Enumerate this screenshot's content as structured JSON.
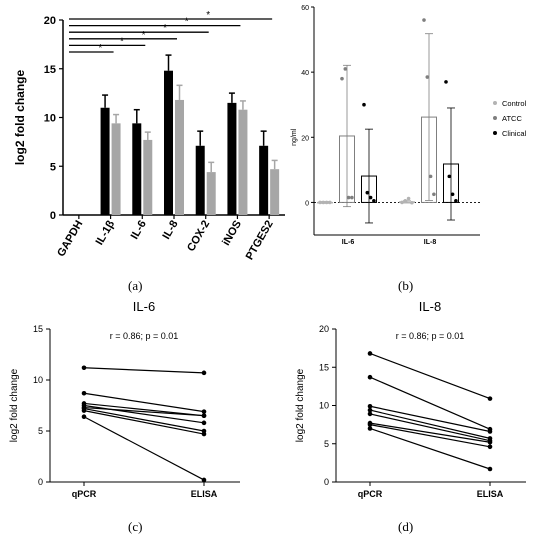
{
  "captions": {
    "a": "(a)",
    "b": "(b)",
    "c": "(c)",
    "d": "(d)"
  },
  "chart_data": [
    {
      "type": "bar",
      "ylabel": "log2 fold change",
      "ylim": [
        0,
        20
      ],
      "yticks": [
        0,
        5,
        10,
        15,
        20
      ],
      "categories": [
        "GAPDH",
        "IL-1β",
        "IL-6",
        "IL-8",
        "COX-2",
        "iNOS",
        "PTGES2"
      ],
      "series": [
        {
          "color": "#000000",
          "values": [
            0,
            11.0,
            9.4,
            14.8,
            7.1,
            11.5,
            7.1
          ],
          "errors": [
            0,
            1.3,
            1.4,
            1.6,
            1.5,
            1.0,
            1.5
          ]
        },
        {
          "color": "#a6a6a6",
          "values": [
            0,
            9.4,
            7.7,
            11.8,
            4.4,
            10.8,
            4.7
          ],
          "errors": [
            0,
            0.9,
            0.8,
            1.5,
            1.0,
            0.9,
            0.9
          ]
        }
      ],
      "significance": [
        {
          "to": "IL-1β",
          "label": "*"
        },
        {
          "to": "IL-6",
          "label": "*"
        },
        {
          "to": "IL-8",
          "label": "*"
        },
        {
          "to": "COX-2",
          "label": "*"
        },
        {
          "to": "iNOS",
          "label": "*"
        },
        {
          "to": "PTGES2",
          "label": "*"
        }
      ]
    },
    {
      "type": "bar",
      "ylabel": "ng/ml",
      "ylim": [
        -10,
        60
      ],
      "yticks": [
        0,
        20,
        40,
        60
      ],
      "categories": [
        "IL-6",
        "IL-8"
      ],
      "legend": [
        "Control",
        "ATCC",
        "Clinical"
      ],
      "legend_position": "right",
      "series": [
        {
          "name": "Control",
          "color": "#b3b3b3",
          "values": [
            0,
            0.2
          ],
          "errors": [
            0.3,
            0.4
          ],
          "points": [
            [
              0,
              0,
              0,
              0
            ],
            [
              0,
              0.5,
              1.2,
              -0.1
            ]
          ]
        },
        {
          "name": "ATCC",
          "color": "#7f7f7f",
          "values": [
            20.4,
            26.2
          ],
          "errors": [
            21.7,
            25.6
          ],
          "points": [
            [
              38,
              41,
              1.5,
              1.5
            ],
            [
              56,
              38.5,
              8,
              2.5
            ]
          ]
        },
        {
          "name": "Clinical",
          "color": "#000000",
          "values": [
            8.1,
            11.8
          ],
          "errors": [
            14.4,
            17.2
          ],
          "points": [
            [
              30,
              3,
              1.5,
              0.5
            ],
            [
              37,
              8,
              2.5,
              0.5
            ]
          ]
        }
      ]
    },
    {
      "type": "line",
      "title": "IL-6",
      "annotation": "r = 0.86; p = 0.01",
      "ylabel": "log2 fold change",
      "ylim": [
        0,
        15
      ],
      "yticks": [
        0,
        5,
        10,
        15
      ],
      "categories": [
        "qPCR",
        "ELISA"
      ],
      "pairs": [
        [
          11.2,
          10.7
        ],
        [
          8.7,
          6.9
        ],
        [
          7.7,
          6.5
        ],
        [
          7.5,
          5.8
        ],
        [
          7.3,
          6.5
        ],
        [
          7.2,
          5.0
        ],
        [
          7.0,
          4.7
        ],
        [
          6.4,
          0.2
        ]
      ]
    },
    {
      "type": "line",
      "title": "IL-8",
      "annotation": "r = 0.86; p = 0.01",
      "ylabel": "log2 fold change",
      "ylim": [
        0,
        20
      ],
      "yticks": [
        0,
        5,
        10,
        15,
        20
      ],
      "categories": [
        "qPCR",
        "ELISA"
      ],
      "pairs": [
        [
          16.8,
          10.9
        ],
        [
          13.7,
          6.9
        ],
        [
          9.9,
          6.6
        ],
        [
          9.4,
          5.7
        ],
        [
          8.9,
          5.4
        ],
        [
          7.7,
          5.2
        ],
        [
          7.5,
          4.6
        ],
        [
          7.0,
          1.7
        ]
      ]
    }
  ]
}
